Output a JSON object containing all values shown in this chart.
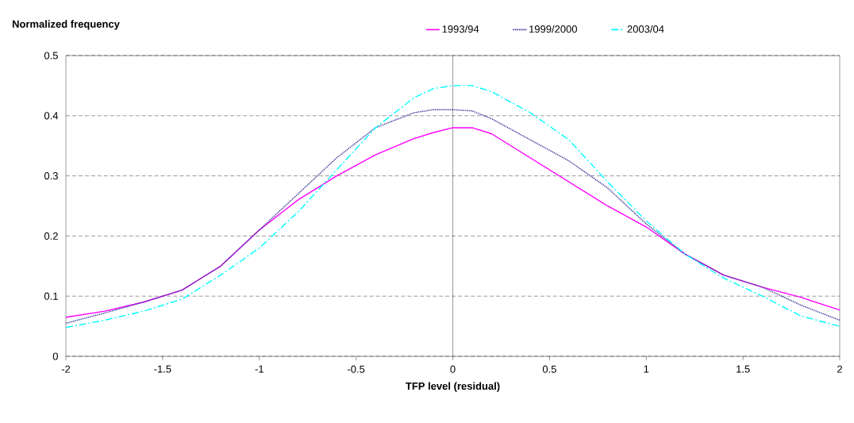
{
  "chart_data": {
    "type": "line",
    "ylabel": "Normalized frequency",
    "xlabel": "TFP level (residual)",
    "x": [
      -2,
      -1.8,
      -1.6,
      -1.4,
      -1.2,
      -1,
      -0.8,
      -0.6,
      -0.4,
      -0.2,
      -0.1,
      0,
      0.1,
      0.2,
      0.4,
      0.6,
      0.8,
      1,
      1.2,
      1.4,
      1.6,
      1.8,
      2
    ],
    "series": [
      {
        "name": "1993/94",
        "color": "#ff00ff",
        "line_style": "solid",
        "values": [
          0.065,
          0.075,
          0.09,
          0.11,
          0.15,
          0.21,
          0.26,
          0.3,
          0.335,
          0.362,
          0.372,
          0.38,
          0.38,
          0.37,
          0.33,
          0.29,
          0.25,
          0.215,
          0.17,
          0.135,
          0.115,
          0.098,
          0.077
        ]
      },
      {
        "name": "1999/2000",
        "color": "#333399",
        "line_style": "dotted",
        "values": [
          0.055,
          0.072,
          0.09,
          0.11,
          0.15,
          0.21,
          0.27,
          0.33,
          0.38,
          0.405,
          0.41,
          0.41,
          0.408,
          0.395,
          0.36,
          0.325,
          0.28,
          0.22,
          0.17,
          0.135,
          0.115,
          0.085,
          0.06
        ]
      },
      {
        "name": "2003/04",
        "color": "#00ffff",
        "line_style": "dashdot",
        "values": [
          0.048,
          0.06,
          0.075,
          0.095,
          0.135,
          0.18,
          0.24,
          0.31,
          0.38,
          0.43,
          0.445,
          0.45,
          0.45,
          0.44,
          0.405,
          0.36,
          0.29,
          0.225,
          0.17,
          0.13,
          0.1,
          0.067,
          0.05
        ]
      }
    ],
    "xlim": [
      -2,
      2
    ],
    "xticks": [
      -2,
      -1.5,
      -1,
      -0.5,
      0,
      0.5,
      1,
      1.5,
      2
    ],
    "ylim": [
      0,
      0.5
    ],
    "yticks": [
      0,
      0.1,
      0.2,
      0.3,
      0.4,
      0.5
    ],
    "grid": "y",
    "legend": "top",
    "marker": "none",
    "ref_lines": [
      {
        "axis": "x",
        "value": 0,
        "color": "#000000",
        "line_style": "solid"
      }
    ]
  }
}
